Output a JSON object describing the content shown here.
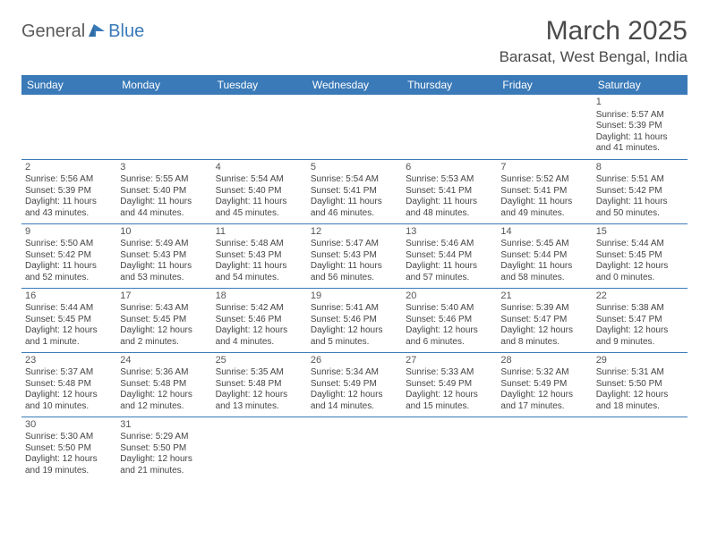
{
  "logo": {
    "general": "General",
    "blue": "Blue"
  },
  "title": "March 2025",
  "location": "Barasat, West Bengal, India",
  "colors": {
    "header_bg": "#3a7ab8",
    "header_text": "#ffffff",
    "row_border": "#3a7ab8",
    "body_text": "#444444",
    "title_text": "#4a4a4a",
    "page_bg": "#ffffff"
  },
  "typography": {
    "title_fontsize_pt": 30,
    "location_fontsize_pt": 17,
    "dayhdr_fontsize_pt": 12,
    "cell_fontsize_pt": 10
  },
  "daynames": [
    "Sunday",
    "Monday",
    "Tuesday",
    "Wednesday",
    "Thursday",
    "Friday",
    "Saturday"
  ],
  "weeks": [
    [
      null,
      null,
      null,
      null,
      null,
      null,
      {
        "n": "1",
        "sunrise": "Sunrise: 5:57 AM",
        "sunset": "Sunset: 5:39 PM",
        "daylight": "Daylight: 11 hours and 41 minutes."
      }
    ],
    [
      {
        "n": "2",
        "sunrise": "Sunrise: 5:56 AM",
        "sunset": "Sunset: 5:39 PM",
        "daylight": "Daylight: 11 hours and 43 minutes."
      },
      {
        "n": "3",
        "sunrise": "Sunrise: 5:55 AM",
        "sunset": "Sunset: 5:40 PM",
        "daylight": "Daylight: 11 hours and 44 minutes."
      },
      {
        "n": "4",
        "sunrise": "Sunrise: 5:54 AM",
        "sunset": "Sunset: 5:40 PM",
        "daylight": "Daylight: 11 hours and 45 minutes."
      },
      {
        "n": "5",
        "sunrise": "Sunrise: 5:54 AM",
        "sunset": "Sunset: 5:41 PM",
        "daylight": "Daylight: 11 hours and 46 minutes."
      },
      {
        "n": "6",
        "sunrise": "Sunrise: 5:53 AM",
        "sunset": "Sunset: 5:41 PM",
        "daylight": "Daylight: 11 hours and 48 minutes."
      },
      {
        "n": "7",
        "sunrise": "Sunrise: 5:52 AM",
        "sunset": "Sunset: 5:41 PM",
        "daylight": "Daylight: 11 hours and 49 minutes."
      },
      {
        "n": "8",
        "sunrise": "Sunrise: 5:51 AM",
        "sunset": "Sunset: 5:42 PM",
        "daylight": "Daylight: 11 hours and 50 minutes."
      }
    ],
    [
      {
        "n": "9",
        "sunrise": "Sunrise: 5:50 AM",
        "sunset": "Sunset: 5:42 PM",
        "daylight": "Daylight: 11 hours and 52 minutes."
      },
      {
        "n": "10",
        "sunrise": "Sunrise: 5:49 AM",
        "sunset": "Sunset: 5:43 PM",
        "daylight": "Daylight: 11 hours and 53 minutes."
      },
      {
        "n": "11",
        "sunrise": "Sunrise: 5:48 AM",
        "sunset": "Sunset: 5:43 PM",
        "daylight": "Daylight: 11 hours and 54 minutes."
      },
      {
        "n": "12",
        "sunrise": "Sunrise: 5:47 AM",
        "sunset": "Sunset: 5:43 PM",
        "daylight": "Daylight: 11 hours and 56 minutes."
      },
      {
        "n": "13",
        "sunrise": "Sunrise: 5:46 AM",
        "sunset": "Sunset: 5:44 PM",
        "daylight": "Daylight: 11 hours and 57 minutes."
      },
      {
        "n": "14",
        "sunrise": "Sunrise: 5:45 AM",
        "sunset": "Sunset: 5:44 PM",
        "daylight": "Daylight: 11 hours and 58 minutes."
      },
      {
        "n": "15",
        "sunrise": "Sunrise: 5:44 AM",
        "sunset": "Sunset: 5:45 PM",
        "daylight": "Daylight: 12 hours and 0 minutes."
      }
    ],
    [
      {
        "n": "16",
        "sunrise": "Sunrise: 5:44 AM",
        "sunset": "Sunset: 5:45 PM",
        "daylight": "Daylight: 12 hours and 1 minute."
      },
      {
        "n": "17",
        "sunrise": "Sunrise: 5:43 AM",
        "sunset": "Sunset: 5:45 PM",
        "daylight": "Daylight: 12 hours and 2 minutes."
      },
      {
        "n": "18",
        "sunrise": "Sunrise: 5:42 AM",
        "sunset": "Sunset: 5:46 PM",
        "daylight": "Daylight: 12 hours and 4 minutes."
      },
      {
        "n": "19",
        "sunrise": "Sunrise: 5:41 AM",
        "sunset": "Sunset: 5:46 PM",
        "daylight": "Daylight: 12 hours and 5 minutes."
      },
      {
        "n": "20",
        "sunrise": "Sunrise: 5:40 AM",
        "sunset": "Sunset: 5:46 PM",
        "daylight": "Daylight: 12 hours and 6 minutes."
      },
      {
        "n": "21",
        "sunrise": "Sunrise: 5:39 AM",
        "sunset": "Sunset: 5:47 PM",
        "daylight": "Daylight: 12 hours and 8 minutes."
      },
      {
        "n": "22",
        "sunrise": "Sunrise: 5:38 AM",
        "sunset": "Sunset: 5:47 PM",
        "daylight": "Daylight: 12 hours and 9 minutes."
      }
    ],
    [
      {
        "n": "23",
        "sunrise": "Sunrise: 5:37 AM",
        "sunset": "Sunset: 5:48 PM",
        "daylight": "Daylight: 12 hours and 10 minutes."
      },
      {
        "n": "24",
        "sunrise": "Sunrise: 5:36 AM",
        "sunset": "Sunset: 5:48 PM",
        "daylight": "Daylight: 12 hours and 12 minutes."
      },
      {
        "n": "25",
        "sunrise": "Sunrise: 5:35 AM",
        "sunset": "Sunset: 5:48 PM",
        "daylight": "Daylight: 12 hours and 13 minutes."
      },
      {
        "n": "26",
        "sunrise": "Sunrise: 5:34 AM",
        "sunset": "Sunset: 5:49 PM",
        "daylight": "Daylight: 12 hours and 14 minutes."
      },
      {
        "n": "27",
        "sunrise": "Sunrise: 5:33 AM",
        "sunset": "Sunset: 5:49 PM",
        "daylight": "Daylight: 12 hours and 15 minutes."
      },
      {
        "n": "28",
        "sunrise": "Sunrise: 5:32 AM",
        "sunset": "Sunset: 5:49 PM",
        "daylight": "Daylight: 12 hours and 17 minutes."
      },
      {
        "n": "29",
        "sunrise": "Sunrise: 5:31 AM",
        "sunset": "Sunset: 5:50 PM",
        "daylight": "Daylight: 12 hours and 18 minutes."
      }
    ],
    [
      {
        "n": "30",
        "sunrise": "Sunrise: 5:30 AM",
        "sunset": "Sunset: 5:50 PM",
        "daylight": "Daylight: 12 hours and 19 minutes."
      },
      {
        "n": "31",
        "sunrise": "Sunrise: 5:29 AM",
        "sunset": "Sunset: 5:50 PM",
        "daylight": "Daylight: 12 hours and 21 minutes."
      },
      null,
      null,
      null,
      null,
      null
    ]
  ]
}
